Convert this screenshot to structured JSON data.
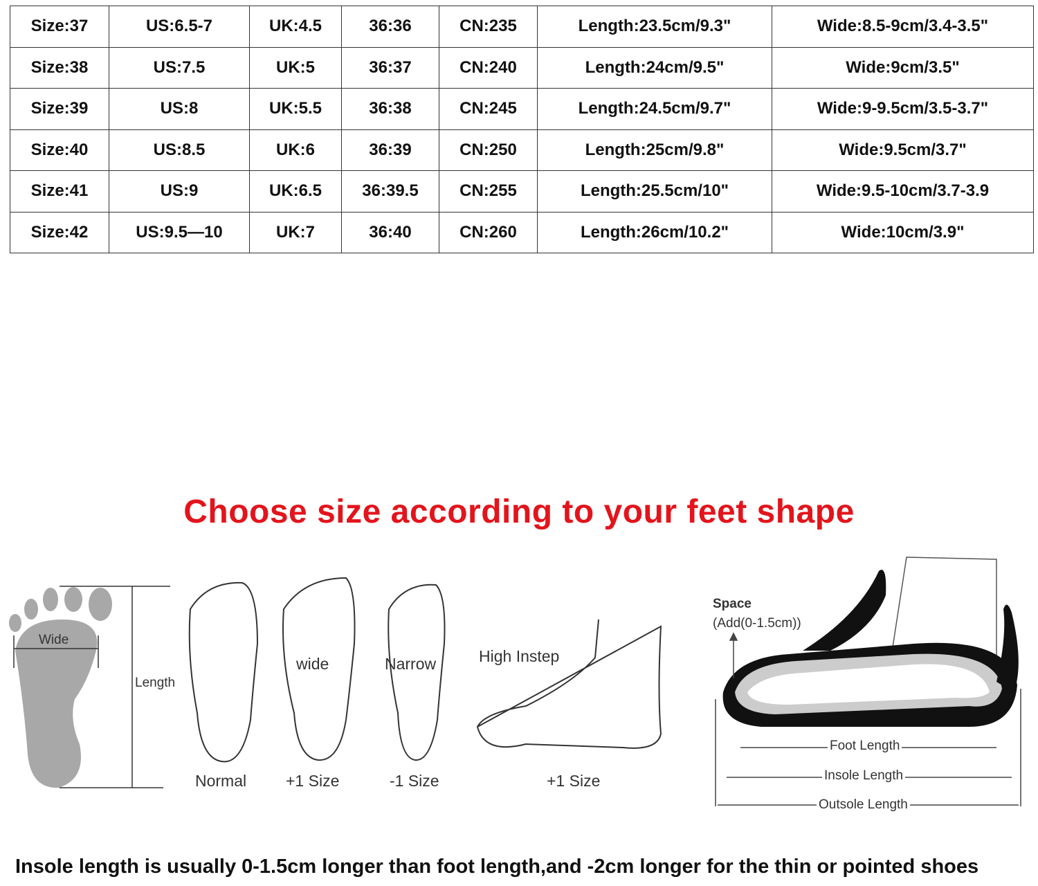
{
  "size_table": {
    "rows": [
      [
        "Size:37",
        "US:6.5-7",
        "UK:4.5",
        "36:36",
        "CN:235",
        "Length:23.5cm/9.3\"",
        "Wide:8.5-9cm/3.4-3.5\""
      ],
      [
        "Size:38",
        "US:7.5",
        "UK:5",
        "36:37",
        "CN:240",
        "Length:24cm/9.5\"",
        "Wide:9cm/3.5\""
      ],
      [
        "Size:39",
        "US:8",
        "UK:5.5",
        "36:38",
        "CN:245",
        "Length:24.5cm/9.7\"",
        "Wide:9-9.5cm/3.5-3.7\""
      ],
      [
        "Size:40",
        "US:8.5",
        "UK:6",
        "36:39",
        "CN:250",
        "Length:25cm/9.8\"",
        "Wide:9.5cm/3.7\""
      ],
      [
        "Size:41",
        "US:9",
        "UK:6.5",
        "36:39.5",
        "CN:255",
        "Length:25.5cm/10\"",
        "Wide:9.5-10cm/3.7-3.9"
      ],
      [
        "Size:42",
        "US:9.5—10",
        "UK:7",
        "36:40",
        "CN:260",
        "Length:26cm/10.2\"",
        "Wide:10cm/3.9\""
      ]
    ]
  },
  "headline": "Choose size according to your feet shape",
  "headline_color": "#e3141c",
  "foot_diagram": {
    "wide_label": "Wide",
    "length_label": "Length",
    "normal_label": "Normal",
    "wide_foot_label": "wide",
    "wide_foot_size": "+1 Size",
    "narrow_foot_label": "Narrow",
    "narrow_foot_size": "-1 Size",
    "high_instep_label": "High Instep",
    "high_instep_size": "+1 Size"
  },
  "shoe_diagram": {
    "space_label": "Space",
    "space_note": "(Add(0-1.5cm))",
    "foot_length": "Foot Length",
    "insole_length": "Insole Length",
    "outsole_length": "Outsole Length"
  },
  "footer_note": "Insole length is usually 0-1.5cm longer than foot length,and -2cm longer for the thin or pointed shoes"
}
